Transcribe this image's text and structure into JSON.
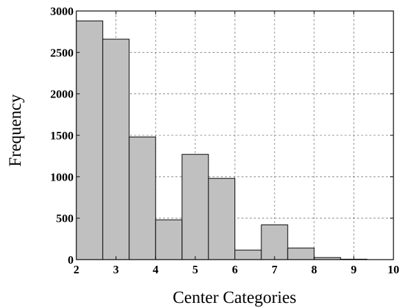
{
  "chart_data": {
    "type": "bar",
    "histogram": true,
    "xlabel": "Center Categories",
    "ylabel": "Frequency",
    "xlim": [
      2,
      10
    ],
    "ylim": [
      0,
      3000
    ],
    "xticks": [
      "2",
      "3",
      "4",
      "5",
      "6",
      "7",
      "8",
      "9",
      "10"
    ],
    "yticks": [
      "0",
      "500",
      "1000",
      "1500",
      "2000",
      "2500",
      "3000"
    ],
    "grid": true,
    "bin_edges": [
      2,
      2.667,
      3.333,
      4,
      4.667,
      5.333,
      6,
      6.667,
      7.333,
      8,
      8.667,
      9.333,
      10
    ],
    "values": [
      2880,
      2660,
      1480,
      480,
      1270,
      980,
      115,
      420,
      140,
      25,
      5,
      0
    ],
    "bar_color": "#c0c0c0"
  }
}
